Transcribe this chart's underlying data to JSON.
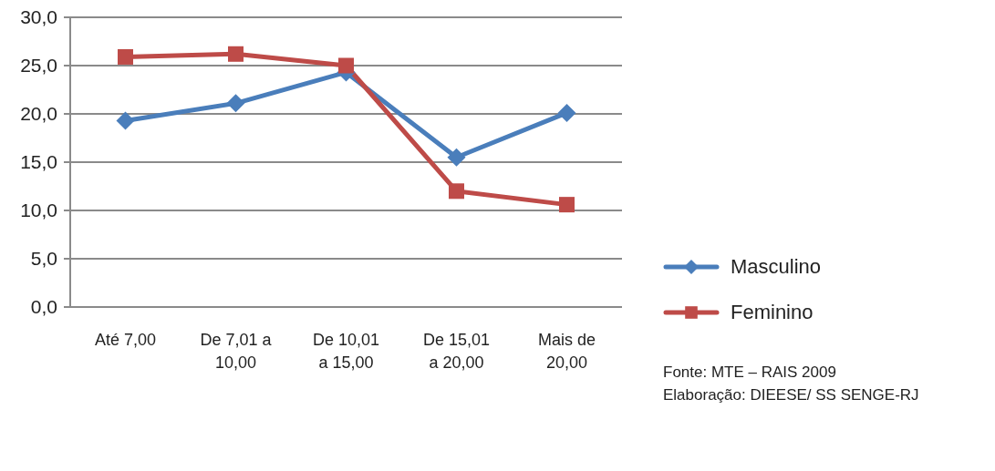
{
  "chart_data": {
    "type": "line",
    "categories": [
      "Até 7,00",
      "De 7,01 a 10,00",
      "De 10,01 a 15,00",
      "De 15,01 a 20,00",
      "Mais de 20,00"
    ],
    "series": [
      {
        "name": "Masculino",
        "color": "#4a7ebb",
        "marker": "diamond",
        "values": [
          19.3,
          21.1,
          24.3,
          15.5,
          20.1
        ]
      },
      {
        "name": "Feminino",
        "color": "#be4b48",
        "marker": "square",
        "values": [
          25.9,
          26.2,
          25.0,
          12.0,
          10.6
        ]
      }
    ],
    "ylim": [
      0,
      30
    ],
    "yticks": [
      {
        "value": 0,
        "label": "0,0"
      },
      {
        "value": 5,
        "label": "5,0"
      },
      {
        "value": 10,
        "label": "10,0"
      },
      {
        "value": 15,
        "label": "15,0"
      },
      {
        "value": 20,
        "label": "20,0"
      },
      {
        "value": 25,
        "label": "25,0"
      },
      {
        "value": 30,
        "label": "30,0"
      }
    ],
    "grid": "y",
    "legend": "right",
    "line_style": "solid",
    "annotations": [
      "Fonte: MTE – RAIS 2009",
      "Elaboração: DIEESE/ SS SENGE-RJ"
    ]
  }
}
